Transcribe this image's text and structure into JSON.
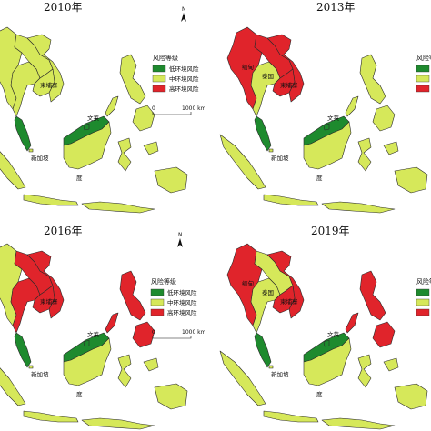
{
  "colors": {
    "low": "#1e8a2e",
    "mid": "#d6e85a",
    "high": "#e0242b"
  },
  "legend": {
    "title": "风险等级",
    "items": [
      {
        "label": "低环境风险",
        "color": "#1e8a2e"
      },
      {
        "label": "中环境风险",
        "color": "#d6e85a"
      },
      {
        "label": "高环境风险",
        "color": "#e0242b"
      }
    ]
  },
  "north_label": "N",
  "scale": {
    "left": "0",
    "right": "1000 km"
  },
  "panels": [
    {
      "year": "2010年",
      "countries": {
        "myanmar": "mid",
        "thailand": "mid",
        "laos": "mid",
        "vietnam": "mid",
        "cambodia": "mid",
        "malaysia_pen": "low",
        "borneo_my": "low",
        "brunei": "low",
        "indonesia": "mid",
        "philippines": "mid",
        "singapore": "mid"
      },
      "labels": {
        "cambodia": "柬埔寨",
        "brunei": "文莱",
        "singapore": "新加坡",
        "indonesia": "度"
      }
    },
    {
      "year": "2013年",
      "countries": {
        "myanmar": "high",
        "thailand": "mid",
        "laos": "high",
        "vietnam": "high",
        "cambodia": "high",
        "malaysia_pen": "low",
        "borneo_my": "low",
        "brunei": "low",
        "indonesia": "mid",
        "philippines": "mid",
        "singapore": "mid"
      },
      "labels": {
        "myanmar": "缅甸",
        "thailand": "泰国",
        "cambodia": "柬埔寨",
        "brunei": "文莱",
        "singapore": "新加坡",
        "indonesia": "度"
      }
    },
    {
      "year": "2016年",
      "countries": {
        "myanmar": "mid",
        "thailand": "high",
        "laos": "high",
        "vietnam": "high",
        "cambodia": "high",
        "malaysia_pen": "low",
        "borneo_my": "low",
        "brunei": "low",
        "indonesia": "mid",
        "philippines": "high",
        "singapore": "mid"
      },
      "labels": {
        "cambodia": "柬埔寨",
        "brunei": "文莱",
        "singapore": "新加坡",
        "indonesia": "度"
      }
    },
    {
      "year": "2019年",
      "countries": {
        "myanmar": "high",
        "thailand": "mid",
        "laos": "mid",
        "vietnam": "high",
        "cambodia": "high",
        "malaysia_pen": "low",
        "borneo_my": "low",
        "brunei": "low",
        "indonesia": "mid",
        "philippines": "high",
        "singapore": "mid"
      },
      "labels": {
        "myanmar": "缅甸",
        "thailand": "泰国",
        "cambodia": "柬埔寨",
        "brunei": "文莱",
        "singapore": "新加坡",
        "indonesia": "度"
      }
    }
  ]
}
